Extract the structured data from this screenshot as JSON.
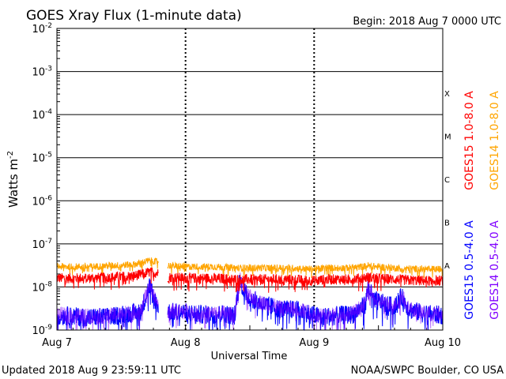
{
  "chart_data": {
    "type": "line",
    "title": "GOES Xray Flux (1-minute data)",
    "begin_label": "Begin:  2018 Aug 7 0000 UTC",
    "ylabel": "Watts m",
    "ylabel_sup": "-2",
    "xlabel": "Universal Time",
    "yscale": "log",
    "ylim": [
      1e-09,
      0.01
    ],
    "y_ticks": [
      {
        "base": "10",
        "exp": "-9",
        "value": 1e-09
      },
      {
        "base": "10",
        "exp": "-8",
        "value": 1e-08
      },
      {
        "base": "10",
        "exp": "-7",
        "value": 1e-07
      },
      {
        "base": "10",
        "exp": "-6",
        "value": 1e-06
      },
      {
        "base": "10",
        "exp": "-5",
        "value": 1e-05
      },
      {
        "base": "10",
        "exp": "-4",
        "value": 0.0001
      },
      {
        "base": "10",
        "exp": "-3",
        "value": 0.001
      },
      {
        "base": "10",
        "exp": "-2",
        "value": 0.01
      }
    ],
    "x_ticks": [
      {
        "label": "Aug 7",
        "day": 0
      },
      {
        "label": "Aug 8",
        "day": 1
      },
      {
        "label": "Aug 9",
        "day": 2
      },
      {
        "label": "Aug 10",
        "day": 3
      }
    ],
    "xlim_days": [
      0,
      3
    ],
    "flare_classes": [
      {
        "label": "A",
        "value": 1e-08
      },
      {
        "label": "B",
        "value": 1e-07
      },
      {
        "label": "C",
        "value": 1e-06
      },
      {
        "label": "M",
        "value": 1e-05
      },
      {
        "label": "X",
        "value": 0.0001
      }
    ],
    "grid": true,
    "legend_placement": "right",
    "series": [
      {
        "name": "GOES15 1.0-8.0 A",
        "color": "#ff0000",
        "key": "g15_long"
      },
      {
        "name": "GOES14 1.0-8.0 A",
        "color": "#ffa500",
        "key": "g14_long"
      },
      {
        "name": "GOES15 0.5-4.0 A",
        "color": "#0000ff",
        "key": "g15_short"
      },
      {
        "name": "GOES14 0.5-4.0 A",
        "color": "#8000ff",
        "key": "g14_short"
      }
    ],
    "data_gap_days": [
      0.79,
      0.86
    ],
    "profile_long": [
      [
        0.0,
        1.6e-08
      ],
      [
        0.25,
        1.6e-08
      ],
      [
        0.45,
        1.7e-08
      ],
      [
        0.6,
        1.8e-08
      ],
      [
        0.72,
        2.2e-08
      ],
      [
        0.78,
        2.1e-08
      ],
      [
        0.86,
        1.7e-08
      ],
      [
        1.0,
        1.6e-08
      ],
      [
        1.2,
        1.6e-08
      ],
      [
        1.3,
        1.55e-08
      ],
      [
        1.42,
        1.5e-08
      ],
      [
        1.6,
        1.5e-08
      ],
      [
        1.8,
        1.5e-08
      ],
      [
        1.98,
        1.4e-08
      ],
      [
        2.1,
        1.5e-08
      ],
      [
        2.25,
        1.5e-08
      ],
      [
        2.38,
        1.6e-08
      ],
      [
        2.42,
        1.7e-08
      ],
      [
        2.48,
        1.6e-08
      ],
      [
        2.7,
        1.45e-08
      ],
      [
        2.85,
        1.4e-08
      ],
      [
        3.0,
        1.4e-08
      ]
    ],
    "profile_short": [
      [
        0.0,
        2.2e-09
      ],
      [
        0.2,
        2e-09
      ],
      [
        0.4,
        2e-09
      ],
      [
        0.55,
        2.4e-09
      ],
      [
        0.65,
        2.6e-09
      ],
      [
        0.72,
        1.1e-08
      ],
      [
        0.75,
        6e-09
      ],
      [
        0.79,
        3.5e-09
      ],
      [
        0.86,
        2.6e-09
      ],
      [
        1.0,
        2.6e-09
      ],
      [
        1.1,
        2.3e-09
      ],
      [
        1.2,
        2.3e-09
      ],
      [
        1.3,
        2.4e-09
      ],
      [
        1.38,
        2.1e-09
      ],
      [
        1.42,
        1.5e-08
      ],
      [
        1.48,
        6e-09
      ],
      [
        1.6,
        4e-09
      ],
      [
        1.75,
        3e-09
      ],
      [
        1.85,
        3e-09
      ],
      [
        1.95,
        2.5e-09
      ],
      [
        2.05,
        2e-09
      ],
      [
        2.2,
        2.2e-09
      ],
      [
        2.3,
        2.3e-09
      ],
      [
        2.4,
        4e-09
      ],
      [
        2.42,
        1.1e-08
      ],
      [
        2.46,
        5e-09
      ],
      [
        2.55,
        4e-09
      ],
      [
        2.62,
        3.5e-09
      ],
      [
        2.68,
        6e-09
      ],
      [
        2.74,
        3e-09
      ],
      [
        2.85,
        2.4e-09
      ],
      [
        3.0,
        2.2e-09
      ]
    ]
  },
  "footer": {
    "updated": "Updated 2018 Aug  9 23:59:11 UTC",
    "credit": "NOAA/SWPC Boulder, CO USA"
  }
}
